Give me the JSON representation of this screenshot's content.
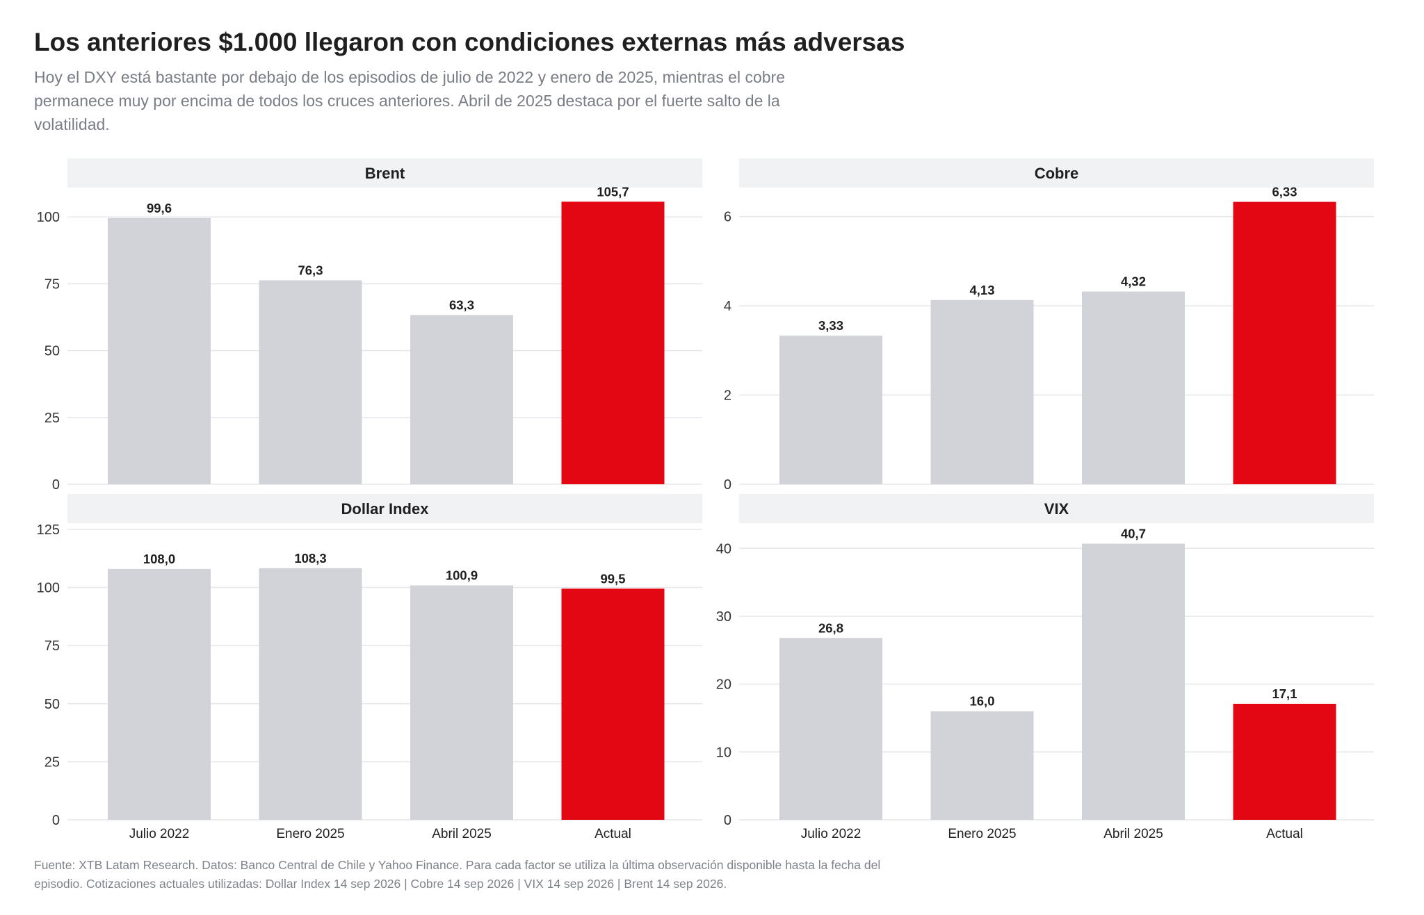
{
  "header": {
    "title": "Los anteriores $1.000 llegaron con condiciones externas más adversas",
    "subtitle": "Hoy el DXY está bastante por debajo de los episodios de julio de 2022 y enero de 2025, mientras el cobre permanece muy por encima de todos los cruces anteriores. Abril de 2025 destaca por el fuerte salto de la volatilidad."
  },
  "footer": {
    "source": "Fuente: XTB Latam Research. Datos: Banco Central de Chile y Yahoo Finance. Para cada factor se utiliza la última observación disponible hasta la fecha del episodio. Cotizaciones actuales utilizadas: Dollar Index 14 sep 2026 | Cobre 14 sep 2026 | VIX 14 sep 2026 | Brent 14 sep 2026."
  },
  "colors": {
    "bar_default": "#d1d3d9",
    "bar_highlight": "#e30613",
    "strip": "#f1f2f4",
    "grid": "#e6e7ea"
  },
  "chart_data": [
    {
      "type": "bar",
      "panel": "Brent",
      "categories": [
        "Julio 2022",
        "Enero 2025",
        "Abril 2025",
        "Actual"
      ],
      "values": [
        99.6,
        76.3,
        63.3,
        105.7
      ],
      "value_labels": [
        "99,6",
        "76,3",
        "63,3",
        "105,7"
      ],
      "highlight": "Actual",
      "yticks": [
        0,
        25,
        50,
        75,
        100
      ],
      "ylim": [
        0,
        110.98
      ],
      "show_x_labels": false,
      "grid": true
    },
    {
      "type": "bar",
      "panel": "Cobre",
      "categories": [
        "Julio 2022",
        "Enero 2025",
        "Abril 2025",
        "Actual"
      ],
      "values": [
        3.33,
        4.13,
        4.32,
        6.33
      ],
      "value_labels": [
        "3,33",
        "4,13",
        "4,32",
        "6,33"
      ],
      "highlight": "Actual",
      "yticks": [
        0,
        2,
        4,
        6
      ],
      "ylim": [
        0,
        6.65
      ],
      "show_x_labels": false,
      "grid": true
    },
    {
      "type": "bar",
      "panel": "Dollar Index",
      "categories": [
        "Julio 2022",
        "Enero 2025",
        "Abril 2025",
        "Actual"
      ],
      "values": [
        108.0,
        108.3,
        100.9,
        99.5
      ],
      "value_labels": [
        "108,0",
        "108,3",
        "100,9",
        "99,5"
      ],
      "highlight": "Actual",
      "yticks": [
        0,
        25,
        50,
        75,
        100,
        125
      ],
      "ylim": [
        0,
        125
      ],
      "show_x_labels": true,
      "grid": true
    },
    {
      "type": "bar",
      "panel": "VIX",
      "categories": [
        "Julio 2022",
        "Enero 2025",
        "Abril 2025",
        "Actual"
      ],
      "values": [
        26.8,
        16.0,
        40.7,
        17.1
      ],
      "value_labels": [
        "26,8",
        "16,0",
        "40,7",
        "17,1"
      ],
      "highlight": "Actual",
      "yticks": [
        0,
        10,
        20,
        30,
        40
      ],
      "ylim": [
        0,
        42.8
      ],
      "show_x_labels": true,
      "grid": true
    }
  ]
}
